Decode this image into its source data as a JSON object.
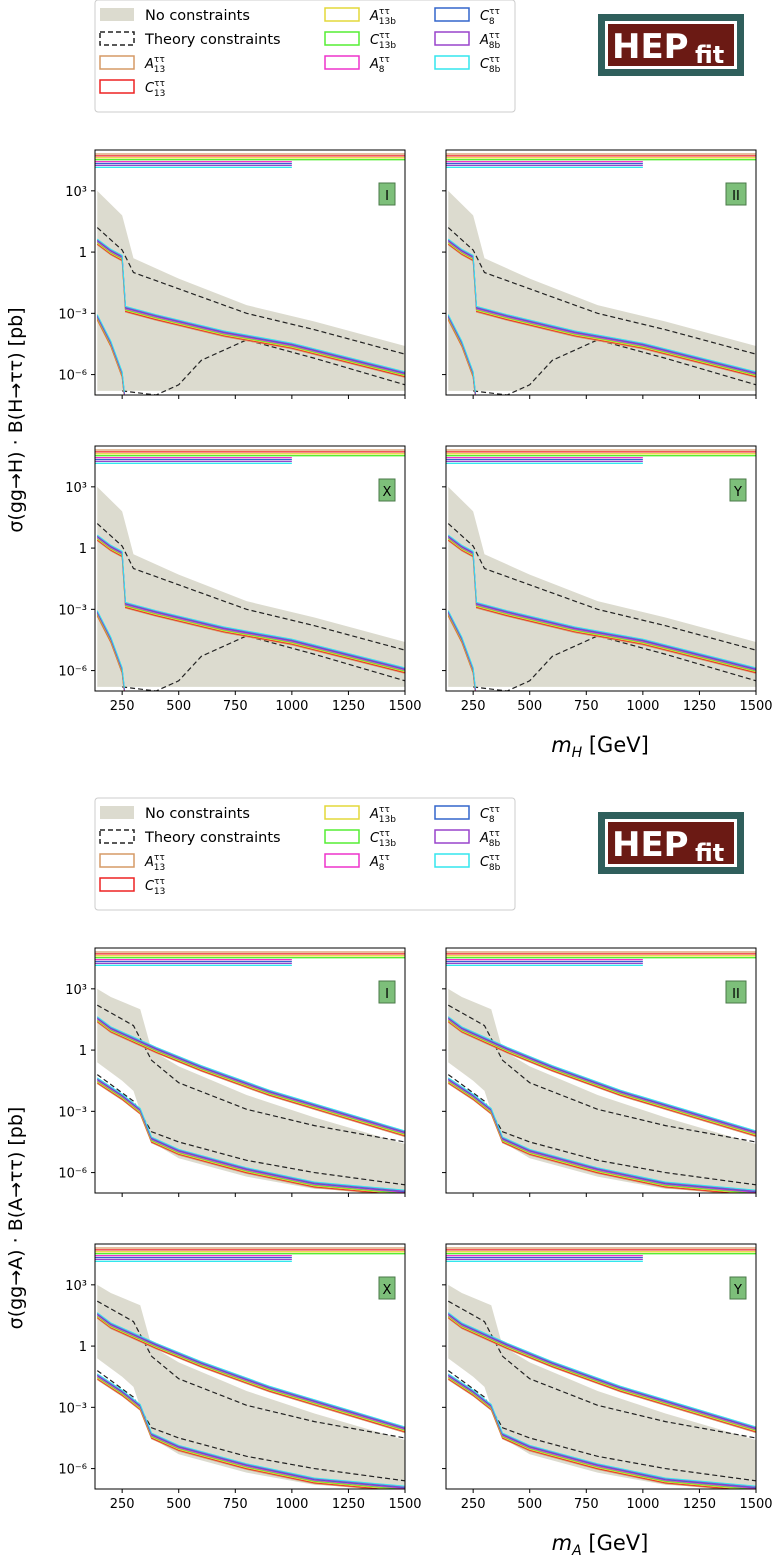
{
  "colors": {
    "fill": "#dcdbcf",
    "theory": "#222222",
    "A13": "#d69a66",
    "C13": "#ee2222",
    "A13b": "#e3d83a",
    "C13b": "#55ee33",
    "A8": "#ee33cc",
    "C8": "#3366cc",
    "A8b": "#9944cc",
    "C8b": "#33e6ee",
    "badge_bg": "#7dbf7a",
    "logo_bg": "#6b1a14",
    "logo_border": "#2f5f5c"
  },
  "logo": {
    "main": "HEP",
    "sub": "fit"
  },
  "legend": {
    "entries": [
      {
        "key": "fill",
        "label": "No constraints"
      },
      {
        "key": "theory",
        "label": "Theory constraints"
      },
      {
        "key": "A13",
        "label": "A",
        "sup": "ττ",
        "sub": "13"
      },
      {
        "key": "C13",
        "label": "C",
        "sup": "ττ",
        "sub": "13"
      },
      {
        "key": "A13b",
        "label": "A",
        "sup": "ττ",
        "sub": "13b"
      },
      {
        "key": "C13b",
        "label": "C",
        "sup": "ττ",
        "sub": "13b"
      },
      {
        "key": "A8",
        "label": "A",
        "sup": "ττ",
        "sub": "8"
      },
      {
        "key": "C8",
        "label": "C",
        "sup": "ττ",
        "sub": "8"
      },
      {
        "key": "A8b",
        "label": "A",
        "sup": "ττ",
        "sub": "8b"
      },
      {
        "key": "C8b",
        "label": "C",
        "sup": "ττ",
        "sub": "8b"
      }
    ]
  },
  "figures": [
    {
      "ylabel": "σ(gg→H) · B(H→ττ) [pb]",
      "xlabel": "m",
      "xlabel_sub": "H",
      "xlabel_unit": " [GeV]",
      "panels": [
        "I",
        "II",
        "X",
        "Y"
      ]
    },
    {
      "ylabel": "σ(gg→A) · B(A→ττ) [pb]",
      "xlabel": "m",
      "xlabel_sub": "A",
      "xlabel_unit": " [GeV]",
      "panels": [
        "I",
        "II",
        "X",
        "Y"
      ]
    }
  ],
  "chart_data": {
    "type": "line",
    "xlim": [
      130,
      1500
    ],
    "ylim_log10": [
      -7,
      5
    ],
    "x_ticks": [
      250,
      500,
      750,
      1000,
      1250,
      1500
    ],
    "x_tick_labels": [
      "250",
      "500",
      "750",
      "1000",
      "1250",
      "1500"
    ],
    "y_ticks_log10": [
      3,
      0,
      -3,
      -6
    ],
    "y_tick_labels": [
      "10³",
      "1",
      "10⁻³",
      "10⁻⁶"
    ],
    "limit_ranges": [
      {
        "key": "A13",
        "x": [
          130,
          1500
        ]
      },
      {
        "key": "C13",
        "x": [
          130,
          1500
        ]
      },
      {
        "key": "A13b",
        "x": [
          130,
          1500
        ]
      },
      {
        "key": "C13b",
        "x": [
          130,
          1500
        ]
      },
      {
        "key": "A8",
        "x": [
          130,
          1000
        ]
      },
      {
        "key": "C8",
        "x": [
          130,
          1000
        ]
      },
      {
        "key": "A8b",
        "x": [
          130,
          1000
        ]
      },
      {
        "key": "C8b",
        "x": [
          130,
          1000
        ]
      }
    ],
    "curves": {
      "H": {
        "fill_upper": [
          [
            140,
            3
          ],
          [
            250,
            1.8
          ],
          [
            300,
            -0.3
          ],
          [
            500,
            -1.3
          ],
          [
            800,
            -2.6
          ],
          [
            1100,
            -3.4
          ],
          [
            1500,
            -4.6
          ]
        ],
        "fill_lower": [
          [
            140,
            -6.8
          ],
          [
            1500,
            -6.8
          ]
        ],
        "theory_upper": [
          [
            140,
            1.2
          ],
          [
            250,
            0.1
          ],
          [
            300,
            -1.0
          ],
          [
            500,
            -1.8
          ],
          [
            800,
            -3.0
          ],
          [
            1100,
            -3.8
          ],
          [
            1500,
            -5.0
          ]
        ],
        "theory_lower": [
          [
            250,
            -6.8
          ],
          [
            400,
            -7
          ],
          [
            500,
            -6.5
          ],
          [
            600,
            -5.3
          ],
          [
            800,
            -4.3
          ],
          [
            1100,
            -5.2
          ],
          [
            1500,
            -6.5
          ]
        ],
        "curve_high": [
          [
            140,
            0.5
          ],
          [
            200,
            0
          ],
          [
            250,
            -0.3
          ],
          [
            265,
            -2.8
          ],
          [
            400,
            -3.2
          ],
          [
            700,
            -4.0
          ],
          [
            1000,
            -4.6
          ],
          [
            1500,
            -6.0
          ]
        ],
        "curve_low": [
          [
            140,
            -3.2
          ],
          [
            200,
            -4.5
          ],
          [
            250,
            -6.0
          ],
          [
            260,
            -7
          ]
        ]
      },
      "A": {
        "fill_upper": [
          [
            140,
            3
          ],
          [
            200,
            2.6
          ],
          [
            330,
            2
          ],
          [
            380,
            0
          ],
          [
            500,
            -0.8
          ],
          [
            800,
            -2.2
          ],
          [
            1100,
            -3.3
          ],
          [
            1500,
            -4.6
          ]
        ],
        "fill_lower": [
          [
            140,
            -0.6
          ],
          [
            250,
            -1.5
          ],
          [
            300,
            -2.0
          ],
          [
            330,
            -3.0
          ],
          [
            380,
            -4.5
          ],
          [
            500,
            -5.3
          ],
          [
            800,
            -6.2
          ],
          [
            1100,
            -6.8
          ],
          [
            1500,
            -7
          ]
        ],
        "theory_upper": [
          [
            140,
            2.2
          ],
          [
            300,
            1.2
          ],
          [
            380,
            -0.5
          ],
          [
            500,
            -1.6
          ],
          [
            800,
            -2.9
          ],
          [
            1100,
            -3.7
          ],
          [
            1500,
            -4.5
          ]
        ],
        "theory_lower": [
          [
            140,
            -1.2
          ],
          [
            300,
            -2.5
          ],
          [
            380,
            -4.0
          ],
          [
            500,
            -4.5
          ],
          [
            800,
            -5.4
          ],
          [
            1100,
            -6.0
          ],
          [
            1500,
            -6.6
          ]
        ],
        "curve_high": [
          [
            140,
            1.5
          ],
          [
            200,
            1.0
          ],
          [
            300,
            0.5
          ],
          [
            400,
            0
          ],
          [
            600,
            -0.9
          ],
          [
            900,
            -2.1
          ],
          [
            1200,
            -3.1
          ],
          [
            1500,
            -4.1
          ]
        ],
        "curve_low": [
          [
            140,
            -1.5
          ],
          [
            250,
            -2.3
          ],
          [
            330,
            -3.0
          ],
          [
            380,
            -4.4
          ],
          [
            500,
            -5.0
          ],
          [
            800,
            -5.9
          ],
          [
            1100,
            -6.6
          ],
          [
            1500,
            -7
          ]
        ]
      }
    }
  }
}
